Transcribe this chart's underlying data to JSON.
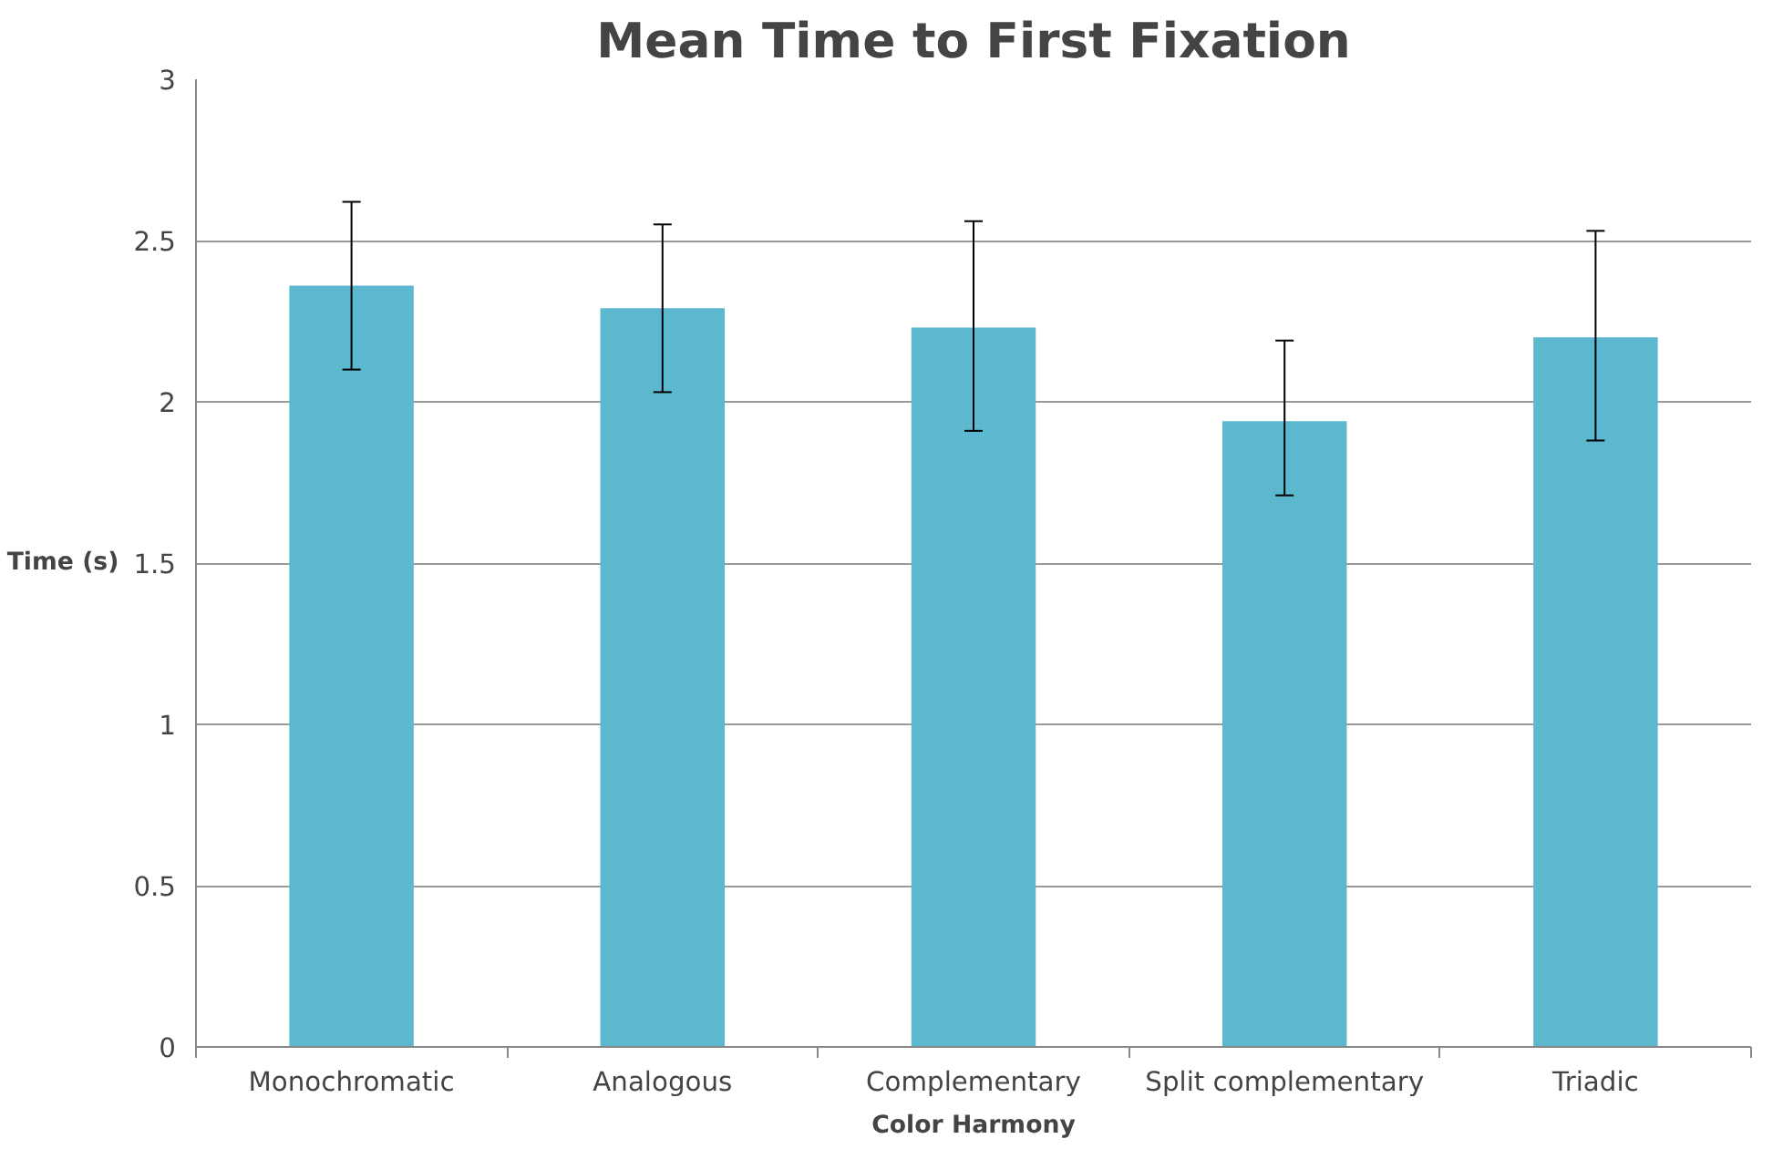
{
  "chart_data": {
    "type": "bar",
    "title": "Mean Time to First Fixation",
    "xlabel": "Color Harmony",
    "ylabel": "Time (s)",
    "categories": [
      "Monochromatic",
      "Analogous",
      "Complementary",
      "Split complementary",
      "Triadic"
    ],
    "values": [
      2.36,
      2.29,
      2.23,
      1.94,
      2.2
    ],
    "errors": [
      [
        2.1,
        2.62
      ],
      [
        2.03,
        2.55
      ],
      [
        1.91,
        2.56
      ],
      [
        1.71,
        2.19
      ],
      [
        1.88,
        2.53
      ]
    ],
    "color": "#5bb8cf",
    "ylim": [
      0,
      3
    ],
    "yticks": [
      0,
      0.5,
      1,
      1.5,
      2,
      2.5,
      3
    ],
    "grid": "y"
  }
}
